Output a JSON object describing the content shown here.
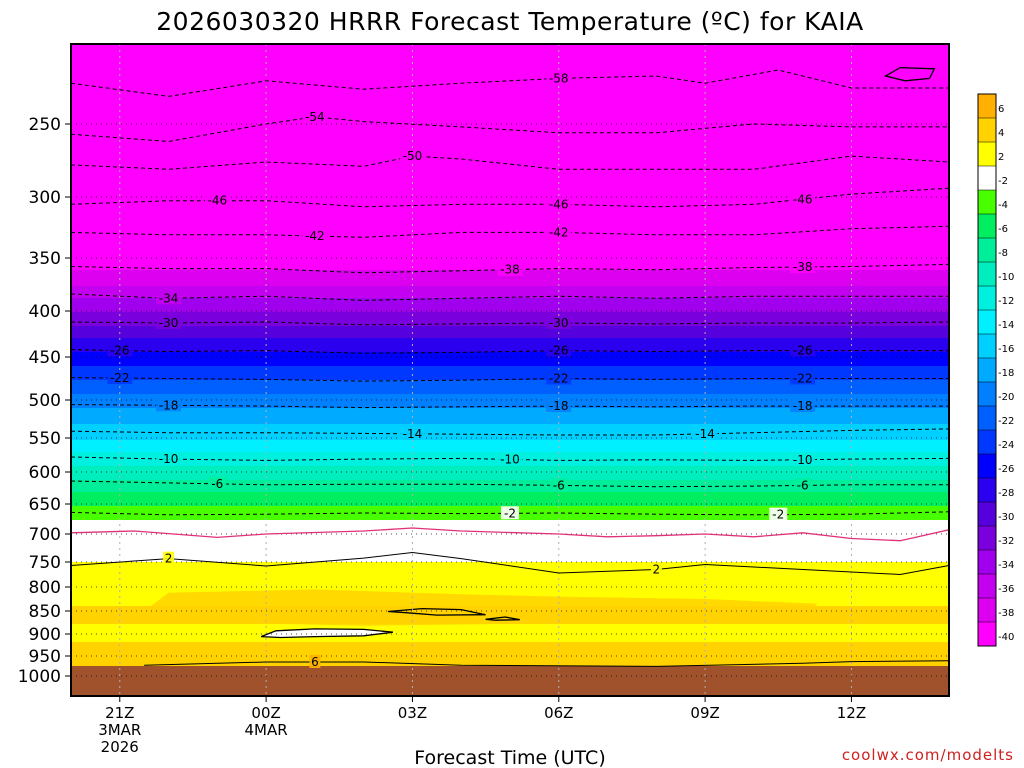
{
  "chart_data": {
    "type": "heatmap",
    "title": "2026030320 HRRR Forecast Temperature (ºC) for KAIA",
    "xlabel": "Forecast Time (UTC)",
    "ylabel": "",
    "credit": "coolwx.com/modelts",
    "x_ticks": [
      {
        "hour": 1,
        "lines": [
          "21Z",
          "3MAR",
          "2026"
        ]
      },
      {
        "hour": 4,
        "lines": [
          "00Z",
          "4MAR"
        ]
      },
      {
        "hour": 7,
        "lines": [
          "03Z"
        ]
      },
      {
        "hour": 10,
        "lines": [
          "06Z"
        ]
      },
      {
        "hour": 13,
        "lines": [
          "09Z"
        ]
      },
      {
        "hour": 16,
        "lines": [
          "12Z"
        ]
      }
    ],
    "xlim": [
      0,
      18
    ],
    "y_ticks": [
      "250",
      "300",
      "350",
      "400",
      "450",
      "500",
      "550",
      "600",
      "650",
      "700",
      "750",
      "800",
      "850",
      "900",
      "950",
      "1000"
    ],
    "y_tick_values": [
      250,
      300,
      350,
      400,
      450,
      500,
      550,
      600,
      650,
      700,
      750,
      800,
      850,
      900,
      950,
      1000
    ],
    "ylim": [
      1000,
      200
    ],
    "units": "ºC",
    "ground_level_hpa": 975,
    "colorbar": {
      "labels": [
        "6",
        "4",
        "2",
        "-2",
        "-4",
        "-6",
        "-8",
        "-10",
        "-12",
        "-14",
        "-16",
        "-18",
        "-20",
        "-22",
        "-24",
        "-26",
        "-28",
        "-30",
        "-32",
        "-34",
        "-36",
        "-38",
        "-40"
      ],
      "colors": [
        "#ffb000",
        "#ffd200",
        "#ffff00",
        "#ffffff",
        "#48ff00",
        "#00ee60",
        "#00ee9a",
        "#00eebe",
        "#00f0e0",
        "#00f0ff",
        "#00d0ff",
        "#00aaff",
        "#0080ff",
        "#0060ff",
        "#0038ff",
        "#0000ff",
        "#2a00ee",
        "#5500dd",
        "#7a00dd",
        "#a000ee",
        "#c400f0",
        "#dd00f0",
        "#ff00ff"
      ]
    },
    "profile": [
      {
        "p": 200,
        "t": -61
      },
      {
        "p": 225,
        "t": -59
      },
      {
        "p": 250,
        "t": -55
      },
      {
        "p": 275,
        "t": -51
      },
      {
        "p": 300,
        "t": -47
      },
      {
        "p": 325,
        "t": -43
      },
      {
        "p": 350,
        "t": -39.5
      },
      {
        "p": 375,
        "t": -36
      },
      {
        "p": 400,
        "t": -32
      },
      {
        "p": 425,
        "t": -28.5
      },
      {
        "p": 450,
        "t": -25
      },
      {
        "p": 475,
        "t": -22
      },
      {
        "p": 500,
        "t": -19
      },
      {
        "p": 525,
        "t": -16.5
      },
      {
        "p": 550,
        "t": -14
      },
      {
        "p": 575,
        "t": -11.5
      },
      {
        "p": 600,
        "t": -9
      },
      {
        "p": 625,
        "t": -6.5
      },
      {
        "p": 650,
        "t": -4
      },
      {
        "p": 675,
        "t": -2
      },
      {
        "p": 700,
        "t": 0
      },
      {
        "p": 725,
        "t": 1
      },
      {
        "p": 750,
        "t": 2
      },
      {
        "p": 800,
        "t": 3.5
      },
      {
        "p": 850,
        "t": 4.2
      },
      {
        "p": 900,
        "t": 3.8
      },
      {
        "p": 950,
        "t": 4.5
      },
      {
        "p": 975,
        "t": 6
      }
    ],
    "contours": [
      {
        "label": "-58",
        "color": "#000000",
        "dash": true,
        "label_hours": [
          10
        ],
        "points": [
          [
            0,
            216
          ],
          [
            2,
            227
          ],
          [
            4,
            214
          ],
          [
            6,
            221
          ],
          [
            8,
            216
          ],
          [
            10,
            212
          ],
          [
            12,
            210
          ],
          [
            13,
            216
          ],
          [
            14.5,
            205
          ],
          [
            16,
            220
          ],
          [
            18,
            220
          ]
        ]
      },
      {
        "label": "-54",
        "color": "#000000",
        "dash": true,
        "label_hours": [
          5
        ],
        "points": [
          [
            0,
            257
          ],
          [
            2,
            262
          ],
          [
            4,
            250
          ],
          [
            5,
            244
          ],
          [
            6,
            248
          ],
          [
            8,
            252
          ],
          [
            10,
            256
          ],
          [
            12,
            256
          ],
          [
            14,
            250
          ],
          [
            16,
            252
          ],
          [
            18,
            252
          ]
        ]
      },
      {
        "label": "-50",
        "color": "#000000",
        "dash": true,
        "label_hours": [
          7
        ],
        "points": [
          [
            0,
            278
          ],
          [
            2,
            281
          ],
          [
            4,
            276
          ],
          [
            6,
            279
          ],
          [
            7,
            272
          ],
          [
            8,
            274
          ],
          [
            10,
            281
          ],
          [
            12,
            281
          ],
          [
            14,
            281
          ],
          [
            16,
            272
          ],
          [
            18,
            276
          ]
        ]
      },
      {
        "label": "-46",
        "color": "#000000",
        "dash": true,
        "label_hours": [
          3,
          10,
          15
        ],
        "points": [
          [
            0,
            306
          ],
          [
            2,
            303
          ],
          [
            4,
            303
          ],
          [
            6,
            308
          ],
          [
            8,
            306
          ],
          [
            10,
            306
          ],
          [
            12,
            308
          ],
          [
            14,
            306
          ],
          [
            16,
            298
          ],
          [
            18,
            294
          ]
        ]
      },
      {
        "label": "-42",
        "color": "#000000",
        "dash": true,
        "label_hours": [
          5,
          10
        ],
        "points": [
          [
            0,
            329
          ],
          [
            2,
            331
          ],
          [
            4,
            331
          ],
          [
            6,
            333
          ],
          [
            8,
            329
          ],
          [
            10,
            329
          ],
          [
            12,
            331
          ],
          [
            14,
            331
          ],
          [
            16,
            326
          ],
          [
            18,
            324
          ]
        ]
      },
      {
        "label": "-38",
        "color": "#000000",
        "dash": true,
        "label_hours": [
          9,
          15
        ],
        "points": [
          [
            0,
            358
          ],
          [
            2,
            360
          ],
          [
            4,
            360
          ],
          [
            6,
            364
          ],
          [
            8,
            362
          ],
          [
            10,
            360
          ],
          [
            12,
            361
          ],
          [
            14,
            359
          ],
          [
            16,
            358
          ],
          [
            18,
            356
          ]
        ]
      },
      {
        "label": "-34",
        "color": "#000000",
        "dash": true,
        "label_hours": [
          2
        ],
        "points": [
          [
            0,
            384
          ],
          [
            2,
            388
          ],
          [
            4,
            386
          ],
          [
            6,
            390
          ],
          [
            8,
            388
          ],
          [
            10,
            386
          ],
          [
            12,
            388
          ],
          [
            14,
            386
          ],
          [
            16,
            386
          ],
          [
            18,
            386
          ]
        ]
      },
      {
        "label": "-30",
        "color": "#000000",
        "dash": true,
        "label_hours": [
          2,
          10
        ],
        "points": [
          [
            0,
            412
          ],
          [
            2,
            413
          ],
          [
            4,
            412
          ],
          [
            6,
            415
          ],
          [
            8,
            414
          ],
          [
            10,
            413
          ],
          [
            12,
            414
          ],
          [
            14,
            413
          ],
          [
            16,
            413
          ],
          [
            18,
            412
          ]
        ]
      },
      {
        "label": "-26",
        "color": "#000000",
        "dash": true,
        "label_hours": [
          1,
          10,
          15
        ],
        "points": [
          [
            0,
            442
          ],
          [
            2,
            444
          ],
          [
            4,
            443
          ],
          [
            6,
            446
          ],
          [
            8,
            445
          ],
          [
            10,
            443
          ],
          [
            12,
            444
          ],
          [
            14,
            443
          ],
          [
            16,
            443
          ],
          [
            18,
            443
          ]
        ]
      },
      {
        "label": "-22",
        "color": "#000000",
        "dash": true,
        "label_hours": [
          1,
          10,
          15
        ],
        "points": [
          [
            0,
            474
          ],
          [
            2,
            475
          ],
          [
            4,
            476
          ],
          [
            6,
            478
          ],
          [
            8,
            477
          ],
          [
            10,
            475
          ],
          [
            12,
            476
          ],
          [
            14,
            475
          ],
          [
            16,
            475
          ],
          [
            18,
            475
          ]
        ]
      },
      {
        "label": "-18",
        "color": "#000000",
        "dash": true,
        "label_hours": [
          2,
          10,
          15
        ],
        "points": [
          [
            0,
            506
          ],
          [
            2,
            507
          ],
          [
            4,
            508
          ],
          [
            6,
            510
          ],
          [
            8,
            509
          ],
          [
            10,
            508
          ],
          [
            12,
            509
          ],
          [
            14,
            508
          ],
          [
            16,
            508
          ],
          [
            18,
            508
          ]
        ]
      },
      {
        "label": "-14",
        "color": "#000000",
        "dash": true,
        "label_hours": [
          7,
          13
        ],
        "points": [
          [
            0,
            541
          ],
          [
            2,
            543
          ],
          [
            4,
            543
          ],
          [
            6,
            544
          ],
          [
            8,
            545
          ],
          [
            10,
            546
          ],
          [
            12,
            546
          ],
          [
            14,
            543
          ],
          [
            16,
            540
          ],
          [
            18,
            538
          ]
        ]
      },
      {
        "label": "-10",
        "color": "#000000",
        "dash": true,
        "label_hours": [
          2,
          9,
          15
        ],
        "points": [
          [
            0,
            578
          ],
          [
            2,
            581
          ],
          [
            4,
            583
          ],
          [
            6,
            581
          ],
          [
            8,
            580
          ],
          [
            10,
            583
          ],
          [
            12,
            582
          ],
          [
            14,
            583
          ],
          [
            16,
            581
          ],
          [
            18,
            580
          ]
        ]
      },
      {
        "label": "-6",
        "color": "#000000",
        "dash": true,
        "label_hours": [
          3,
          10,
          15
        ],
        "points": [
          [
            0,
            614
          ],
          [
            2,
            617
          ],
          [
            4,
            620
          ],
          [
            6,
            619
          ],
          [
            8,
            619
          ],
          [
            10,
            621
          ],
          [
            12,
            623
          ],
          [
            14,
            622
          ],
          [
            16,
            620
          ],
          [
            18,
            620
          ]
        ]
      },
      {
        "label": "-2",
        "color": "#000000",
        "dash": true,
        "label_hours": [
          9,
          14.5
        ],
        "points": [
          [
            0,
            664
          ],
          [
            2,
            668
          ],
          [
            4,
            667
          ],
          [
            6,
            665
          ],
          [
            8,
            666
          ],
          [
            10,
            665
          ],
          [
            12,
            667
          ],
          [
            14,
            668
          ],
          [
            16,
            667
          ],
          [
            18,
            663
          ]
        ]
      },
      {
        "label": "",
        "color": "#e0307a",
        "dash": false,
        "label_hours": [],
        "points": [
          [
            0,
            698
          ],
          [
            1.3,
            695
          ],
          [
            3,
            706
          ],
          [
            4,
            700
          ],
          [
            6,
            695
          ],
          [
            7,
            690
          ],
          [
            8,
            695
          ],
          [
            10,
            700
          ],
          [
            11,
            705
          ],
          [
            12,
            703
          ],
          [
            13,
            700
          ],
          [
            14,
            705
          ],
          [
            15,
            698
          ],
          [
            16,
            708
          ],
          [
            17,
            712
          ],
          [
            18,
            693
          ]
        ]
      },
      {
        "label": "2",
        "color": "#000000",
        "dash": false,
        "label_hours": [
          2,
          12
        ],
        "points": [
          [
            0,
            757
          ],
          [
            2,
            744
          ],
          [
            4,
            758
          ],
          [
            6,
            743
          ],
          [
            7,
            733
          ],
          [
            8,
            744
          ],
          [
            10,
            772
          ],
          [
            12,
            765
          ],
          [
            13,
            755
          ],
          [
            14,
            760
          ],
          [
            16,
            770
          ],
          [
            17,
            775
          ],
          [
            18,
            757
          ]
        ]
      },
      {
        "label": "6",
        "color": "#000000",
        "dash": false,
        "label_hours": [
          5
        ],
        "points": [
          [
            1.5,
            973
          ],
          [
            4,
            965
          ],
          [
            6,
            965
          ],
          [
            6.8,
            968
          ],
          [
            8,
            973
          ],
          [
            12,
            976
          ],
          [
            15,
            968
          ],
          [
            16,
            964
          ],
          [
            18,
            962
          ]
        ]
      }
    ],
    "closed_contours": [
      {
        "level": "2",
        "fill": "#ffffff",
        "points": [
          [
            3.9,
            906
          ],
          [
            4.2,
            893
          ],
          [
            5,
            889
          ],
          [
            6,
            890
          ],
          [
            6.6,
            896
          ],
          [
            6,
            904
          ],
          [
            5,
            906
          ],
          [
            4.3,
            908
          ]
        ]
      },
      {
        "level": "4",
        "fill": "#ffd200",
        "points": [
          [
            6.5,
            851
          ],
          [
            7.2,
            845
          ],
          [
            8,
            847
          ],
          [
            8.5,
            858
          ],
          [
            7.5,
            859
          ],
          [
            6.9,
            854
          ]
        ]
      },
      {
        "level": "4",
        "fill": "#ffd200",
        "points": [
          [
            8.5,
            868
          ],
          [
            8.9,
            863
          ],
          [
            9.2,
            869
          ],
          [
            8.7,
            870
          ]
        ]
      },
      {
        "level": "-62",
        "fill": "#ff00ff",
        "points": [
          [
            16.7,
            210
          ],
          [
            17,
            203
          ],
          [
            17.7,
            204
          ],
          [
            17.6,
            212
          ],
          [
            17.1,
            214
          ]
        ]
      }
    ]
  }
}
